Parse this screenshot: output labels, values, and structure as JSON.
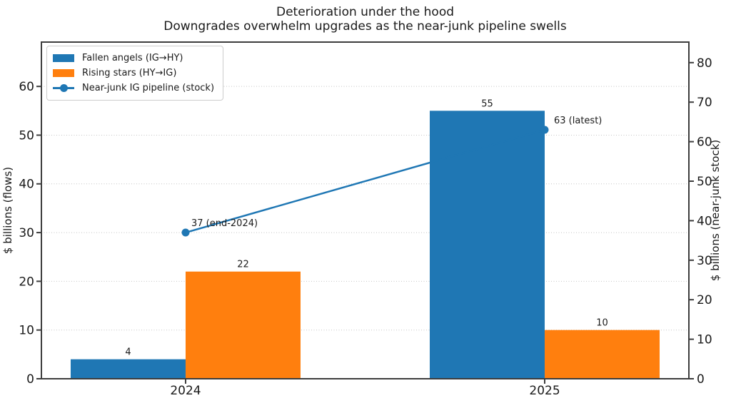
{
  "figure": {
    "title": "Deterioration under the hood",
    "subtitle": "Downgrades overwhelm upgrades as the near-junk pipeline swells"
  },
  "chart_data": {
    "type": "bar",
    "categories": [
      "2024",
      "2025"
    ],
    "series": [
      {
        "name": "Fallen angels (IG→HY)",
        "key": "fallen-angels",
        "type": "bar",
        "axis": "left",
        "color": "#1f77b4",
        "values": [
          4,
          55
        ]
      },
      {
        "name": "Rising stars (HY→IG)",
        "key": "rising-stars",
        "type": "bar",
        "axis": "left",
        "color": "#ff7f0e",
        "values": [
          22,
          10
        ]
      },
      {
        "name": "Near-junk IG pipeline (stock)",
        "key": "near-junk-pipeline",
        "type": "line",
        "axis": "right",
        "color": "#1f77b4",
        "values": [
          37,
          63
        ],
        "point_labels": [
          "37 (end-2024)",
          "63 (latest)"
        ]
      }
    ],
    "left_axis": {
      "label": "$ billions (flows)",
      "ticks": [
        0,
        10,
        20,
        30,
        40,
        50,
        60
      ],
      "range": [
        0,
        69.1
      ]
    },
    "right_axis": {
      "label": "$ billions (near-junk stock)",
      "ticks": [
        0,
        10,
        20,
        30,
        40,
        50,
        60,
        70,
        80
      ],
      "range": [
        0,
        85.2
      ]
    },
    "legend": {
      "position": "upper left"
    },
    "grid": {
      "axis": "y",
      "style": "dotted",
      "on": "left_ticks",
      "color": "#c4c4c4"
    },
    "colors": {
      "bar_blue": "#1f77b4",
      "bar_orange": "#ff7f0e",
      "line_blue": "#1f77b4",
      "text": "#1a1a1a",
      "spine": "#3d3d3d"
    }
  }
}
